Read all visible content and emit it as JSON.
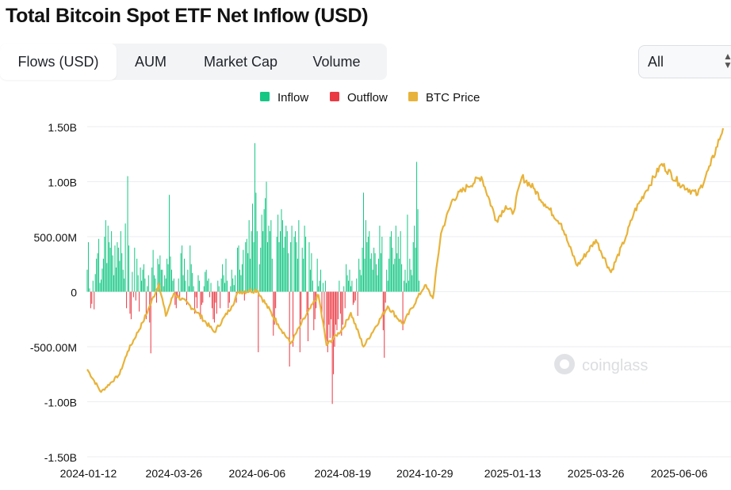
{
  "title": "Total Bitcoin Spot ETF Net Inflow (USD)",
  "tabs": [
    {
      "label": "Flows (USD)",
      "active": true
    },
    {
      "label": "AUM",
      "active": false
    },
    {
      "label": "Market Cap",
      "active": false
    },
    {
      "label": "Volume",
      "active": false
    }
  ],
  "range_select": {
    "value": "All"
  },
  "colors": {
    "inflow": "#16c784",
    "outflow": "#ea3943",
    "price": "#e8b33a"
  },
  "watermark": "coinglass",
  "chart_data": {
    "type": "bar",
    "legend": [
      "Inflow",
      "Outflow",
      "BTC Price"
    ],
    "legend_position": "top-center",
    "grid": true,
    "y_axis": {
      "min": -1.5,
      "max": 1.5,
      "unit": "B USD",
      "ticks": [
        1.5,
        1.0,
        0.5,
        0,
        -0.5,
        -1.0,
        -1.5
      ],
      "tick_labels": [
        "1.50B",
        "1.00B",
        "500.00M",
        "0",
        "-500.00M",
        "-1.00B",
        "-1.50B"
      ]
    },
    "x_axis": {
      "start": "2024-01-11",
      "end": "2025-07-14",
      "tick_dates": [
        "2024-01-12",
        "2024-03-26",
        "2024-06-06",
        "2024-08-19",
        "2024-10-29",
        "2025-01-13",
        "2025-03-26",
        "2025-06-06"
      ],
      "tick_labels": [
        "2024-01-12",
        "2024-03-26",
        "2024-06-06",
        "2024-08-19",
        "2024-10-29",
        "2025-01-13",
        "2025-03-26",
        "2025-06-06"
      ]
    },
    "flows_by_week": {
      "week_start": "2024-01-11",
      "values_busd": [
        [
          0.2,
          0.45,
          0.03,
          -0.15,
          -0.11,
          0.1,
          -0.16
        ],
        [
          0.16,
          0.3,
          0.35,
          0.48,
          0.08,
          0.11,
          0.21
        ],
        [
          0.3,
          0.5,
          0.65,
          0.26,
          0.6,
          0.45,
          0.4
        ],
        [
          0.55,
          0.33,
          0.15,
          0.42,
          0.22,
          0.45,
          0.4
        ],
        [
          0.28,
          0.55,
          0.35,
          0.2,
          0.12,
          0.62,
          -0.15
        ],
        [
          1.05,
          0.42,
          -0.2,
          -0.25,
          0.18,
          -0.05,
          0.4
        ],
        [
          -0.08,
          0.3,
          0.15,
          -0.18,
          0.22,
          0.1,
          0.2
        ],
        [
          0.25,
          0.12,
          -0.25,
          0.05,
          0.15,
          -0.28,
          -0.56
        ],
        [
          0.22,
          0.38,
          0.15,
          0.12,
          -0.1,
          0.3,
          0.25
        ],
        [
          0.33,
          0.2,
          0.2,
          0.05,
          0.15,
          0.12,
          0.3
        ],
        [
          0.25,
          0.88,
          0.32,
          0.2,
          0.1,
          0.12,
          -0.12
        ],
        [
          -0.15,
          -0.05,
          0.12,
          -0.08,
          0.35,
          0.42,
          0.15
        ],
        [
          0.3,
          0.1,
          -0.12,
          0.2,
          0.05,
          0.42,
          0.25
        ],
        [
          0.17,
          0.05,
          -0.2,
          -0.05,
          -0.15,
          0.15,
          0.1
        ],
        [
          -0.25,
          -0.12,
          -0.1,
          0.05,
          0.18,
          0.2,
          0.1
        ],
        [
          0.12,
          -0.05,
          0.08,
          -0.15,
          -0.25,
          -0.28,
          -0.1
        ],
        [
          -0.2,
          0.1,
          0.05,
          -0.15,
          0.12,
          0.25,
          0.15
        ],
        [
          0.08,
          0.3,
          0.1,
          -0.15,
          -0.1,
          0.05,
          0.2
        ],
        [
          0.12,
          0.06,
          0.15,
          -0.1,
          0.4,
          0.42,
          0.2
        ],
        [
          0.15,
          0.25,
          0.38,
          -0.08,
          0.45,
          0.48,
          0.35
        ],
        [
          0.65,
          0.3,
          0.55,
          0.8,
          0.45,
          1.35,
          0.9
        ],
        [
          0.55,
          -0.55,
          0.25,
          0.4,
          0.7,
          0.55,
          0.75
        ],
        [
          0.85,
          1.0,
          0.45,
          0.6,
          0.55,
          0.65,
          0.3
        ],
        [
          -0.4,
          -0.3,
          -0.15,
          0.5,
          0.7,
          0.45,
          0.55
        ],
        [
          0.75,
          0.65,
          0.4,
          0.5,
          0.6,
          0.55,
          0.35
        ],
        [
          -0.68,
          0.45,
          0.6,
          -0.5,
          0.5,
          0.55,
          0.45
        ],
        [
          0.3,
          0.65,
          -0.55,
          -0.25,
          0.4,
          0.3,
          0.6
        ],
        [
          0.5,
          -0.2,
          -0.45,
          0.45,
          0.2,
          0.35,
          0.1
        ],
        [
          -0.35,
          -0.25,
          -0.15,
          0.3,
          0.05,
          0.1,
          0.2
        ],
        [
          -0.2,
          0.08,
          -0.35,
          0.1,
          -0.45,
          -0.55,
          -0.3
        ],
        [
          -0.42,
          -0.25,
          -1.02,
          -0.75,
          -0.5,
          -0.3,
          -0.35
        ],
        [
          -0.25,
          0.1,
          -0.2,
          -0.4,
          -0.3,
          0.05,
          -0.15
        ],
        [
          0.25,
          0.15,
          0.1,
          0.2,
          0.05,
          0.1,
          -0.12
        ],
        [
          -0.1,
          -0.08,
          0.12,
          -0.22,
          0.3,
          0.2,
          0.15
        ],
        [
          0.4,
          0.9,
          0.3,
          0.65,
          0.45,
          0.5,
          0.55
        ],
        [
          0.3,
          0.35,
          0.2,
          0.4,
          0.35,
          0.25,
          0.15
        ],
        [
          0.3,
          0.6,
          0.35,
          0.5,
          -0.35,
          -0.6,
          -0.1
        ],
        [
          0.2,
          0.1,
          0.3,
          0.5,
          0.55,
          0.4,
          0.25
        ],
        [
          0.3,
          0.6,
          0.35,
          0.5,
          0.3,
          0.55,
          0.25
        ],
        [
          -0.35,
          0.1,
          0.2,
          0.08,
          0.7,
          0.1,
          0.3
        ],
        [
          0.2,
          0.15,
          0.45,
          0.6,
          0.4,
          1.18,
          0.75
        ],
        [
          0.1
        ]
      ]
    },
    "btc_price_keyframes": [
      [
        "2024-01-11",
        46500
      ],
      [
        "2024-01-23",
        39500
      ],
      [
        "2024-02-08",
        45000
      ],
      [
        "2024-02-15",
        52000
      ],
      [
        "2024-02-28",
        61000
      ],
      [
        "2024-03-05",
        66000
      ],
      [
        "2024-03-13",
        73000
      ],
      [
        "2024-03-19",
        63000
      ],
      [
        "2024-03-26",
        70000
      ],
      [
        "2024-04-13",
        65000
      ],
      [
        "2024-04-30",
        58000
      ],
      [
        "2024-05-15",
        66000
      ],
      [
        "2024-05-21",
        70500
      ],
      [
        "2024-06-06",
        71000
      ],
      [
        "2024-06-24",
        60500
      ],
      [
        "2024-07-05",
        54500
      ],
      [
        "2024-07-14",
        60500
      ],
      [
        "2024-07-29",
        69500
      ],
      [
        "2024-08-05",
        54000
      ],
      [
        "2024-08-19",
        59000
      ],
      [
        "2024-08-26",
        64000
      ],
      [
        "2024-09-06",
        53500
      ],
      [
        "2024-09-27",
        66000
      ],
      [
        "2024-10-10",
        60500
      ],
      [
        "2024-10-29",
        72500
      ],
      [
        "2024-11-05",
        68500
      ],
      [
        "2024-11-12",
        88500
      ],
      [
        "2024-11-22",
        99000
      ],
      [
        "2024-12-05",
        103000
      ],
      [
        "2024-12-17",
        106000
      ],
      [
        "2024-12-30",
        92500
      ],
      [
        "2025-01-07",
        97000
      ],
      [
        "2025-01-13",
        94500
      ],
      [
        "2025-01-21",
        106000
      ],
      [
        "2025-01-31",
        102500
      ],
      [
        "2025-02-10",
        97500
      ],
      [
        "2025-02-24",
        91500
      ],
      [
        "2025-03-03",
        84500
      ],
      [
        "2025-03-10",
        78500
      ],
      [
        "2025-03-26",
        86500
      ],
      [
        "2025-04-08",
        76500
      ],
      [
        "2025-04-21",
        87500
      ],
      [
        "2025-04-28",
        95000
      ],
      [
        "2025-05-08",
        101500
      ],
      [
        "2025-05-22",
        110000
      ],
      [
        "2025-06-06",
        104000
      ],
      [
        "2025-06-22",
        100500
      ],
      [
        "2025-07-03",
        109500
      ],
      [
        "2025-07-14",
        121000
      ]
    ],
    "btc_price_right_axis_range": [
      19500,
      121500
    ]
  }
}
